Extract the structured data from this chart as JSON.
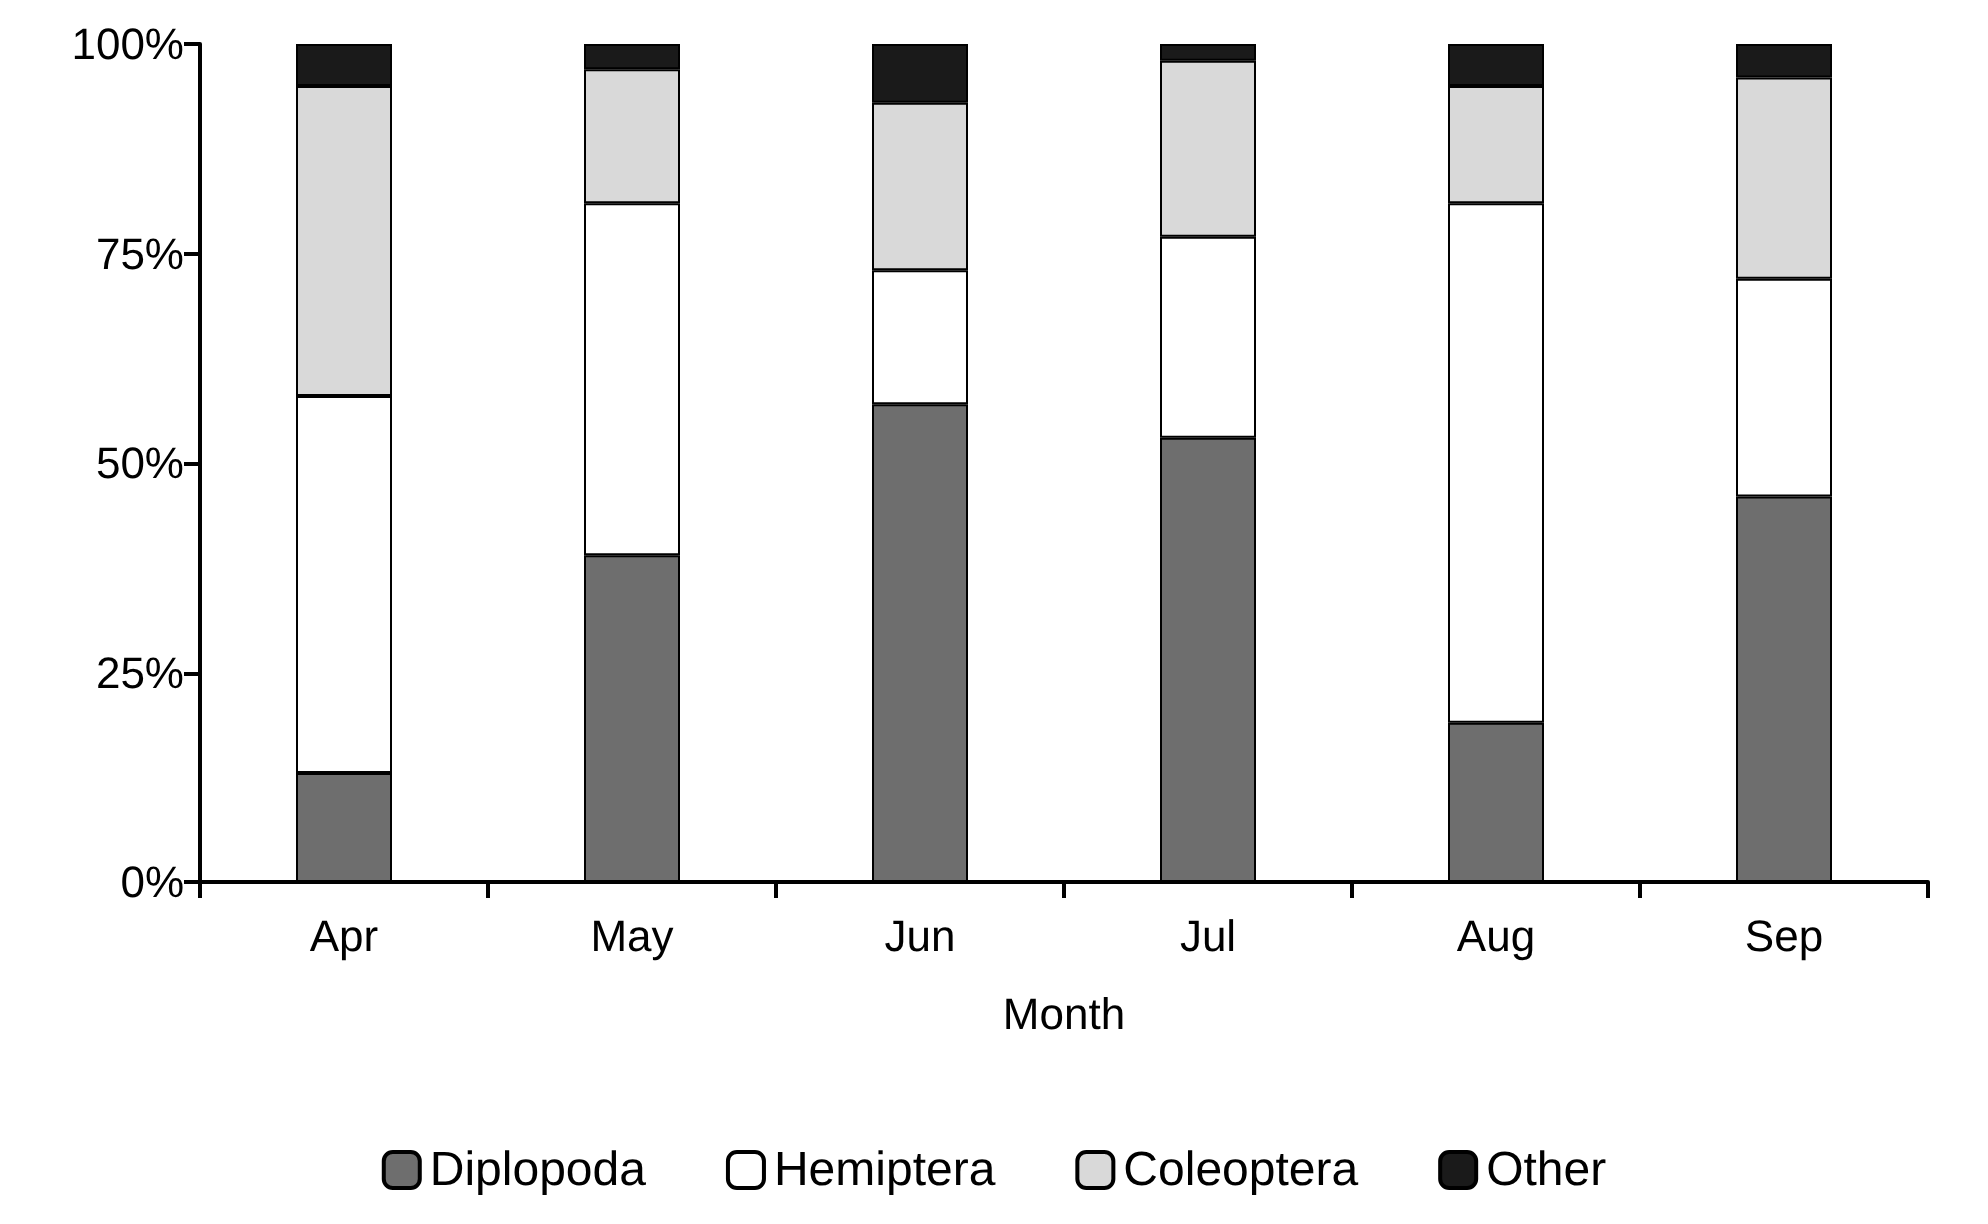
{
  "chart_data": {
    "type": "bar",
    "stacked": true,
    "xlabel": "Month",
    "categories": [
      "Apr",
      "May",
      "Jun",
      "Jul",
      "Aug",
      "Sep"
    ],
    "series": [
      {
        "name": "Diplopoda",
        "color": "#6e6e6e",
        "values": [
          13,
          39,
          57,
          53,
          19,
          46
        ]
      },
      {
        "name": "Hemiptera",
        "color": "#ffffff",
        "values": [
          45,
          42,
          16,
          24,
          62,
          26
        ]
      },
      {
        "name": "Coleoptera",
        "color": "#d9d9d9",
        "values": [
          37,
          16,
          20,
          21,
          14,
          24
        ]
      },
      {
        "name": "Other",
        "color": "#1a1a1a",
        "values": [
          5,
          3,
          7,
          2,
          5,
          4
        ]
      }
    ],
    "ylim": [
      0,
      100
    ],
    "yticks": [
      {
        "value": 0,
        "label": "0%"
      },
      {
        "value": 25,
        "label": "25%"
      },
      {
        "value": 50,
        "label": "50%"
      },
      {
        "value": 75,
        "label": "75%"
      },
      {
        "value": 100,
        "label": "100%"
      }
    ],
    "grid": false,
    "legend": "bottom"
  }
}
